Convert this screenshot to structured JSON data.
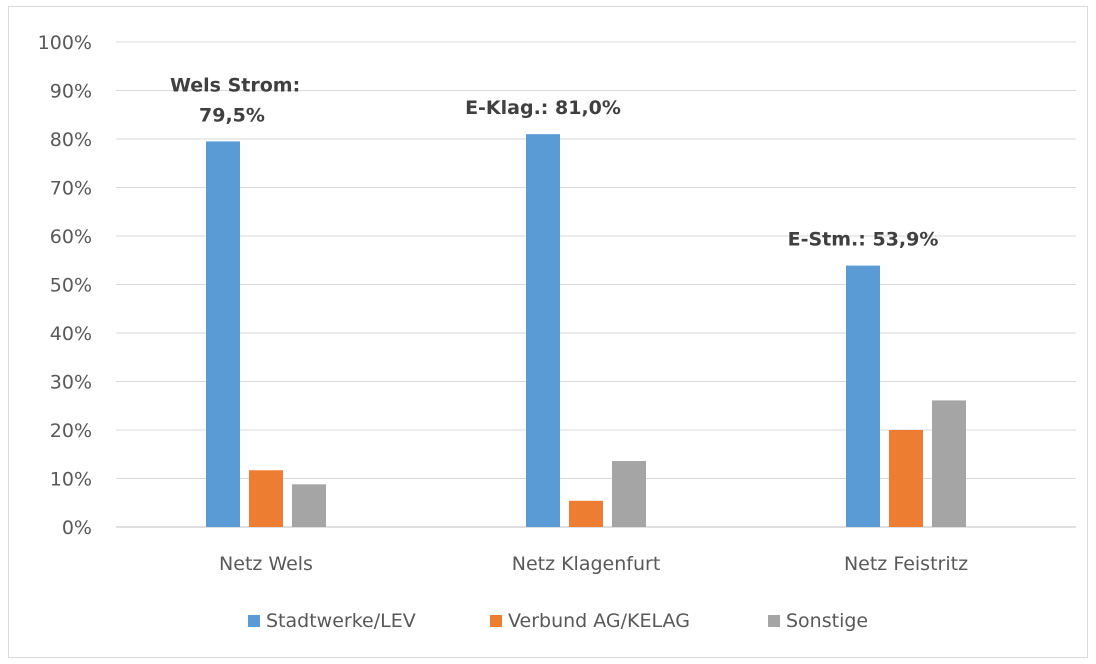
{
  "chart_data": {
    "type": "bar",
    "categories": [
      "Netz Wels",
      "Netz Klagenfurt",
      "Netz Feistritz"
    ],
    "series": [
      {
        "name": "Stadtwerke/LEV",
        "values": [
          79.5,
          81.0,
          53.9
        ],
        "color": "#5b9bd5"
      },
      {
        "name": "Verbund AG/KELAG",
        "values": [
          11.7,
          5.4,
          20.0
        ],
        "color": "#ed7d31"
      },
      {
        "name": "Sonstige",
        "values": [
          8.8,
          13.6,
          26.1
        ],
        "color": "#a5a5a5"
      }
    ],
    "ylim": [
      0,
      100
    ],
    "yticks": [
      "0%",
      "10%",
      "20%",
      "30%",
      "40%",
      "50%",
      "60%",
      "70%",
      "80%",
      "90%",
      "100%"
    ],
    "grid": true,
    "legend": "bottom",
    "annotations": [
      {
        "category_index": 0,
        "lines": [
          "Wels Strom:",
          "79,5%"
        ]
      },
      {
        "category_index": 1,
        "lines": [
          "E-Klag.: 81,0%"
        ]
      },
      {
        "category_index": 2,
        "lines": [
          "E-Stm.: 53,9%"
        ]
      }
    ]
  }
}
